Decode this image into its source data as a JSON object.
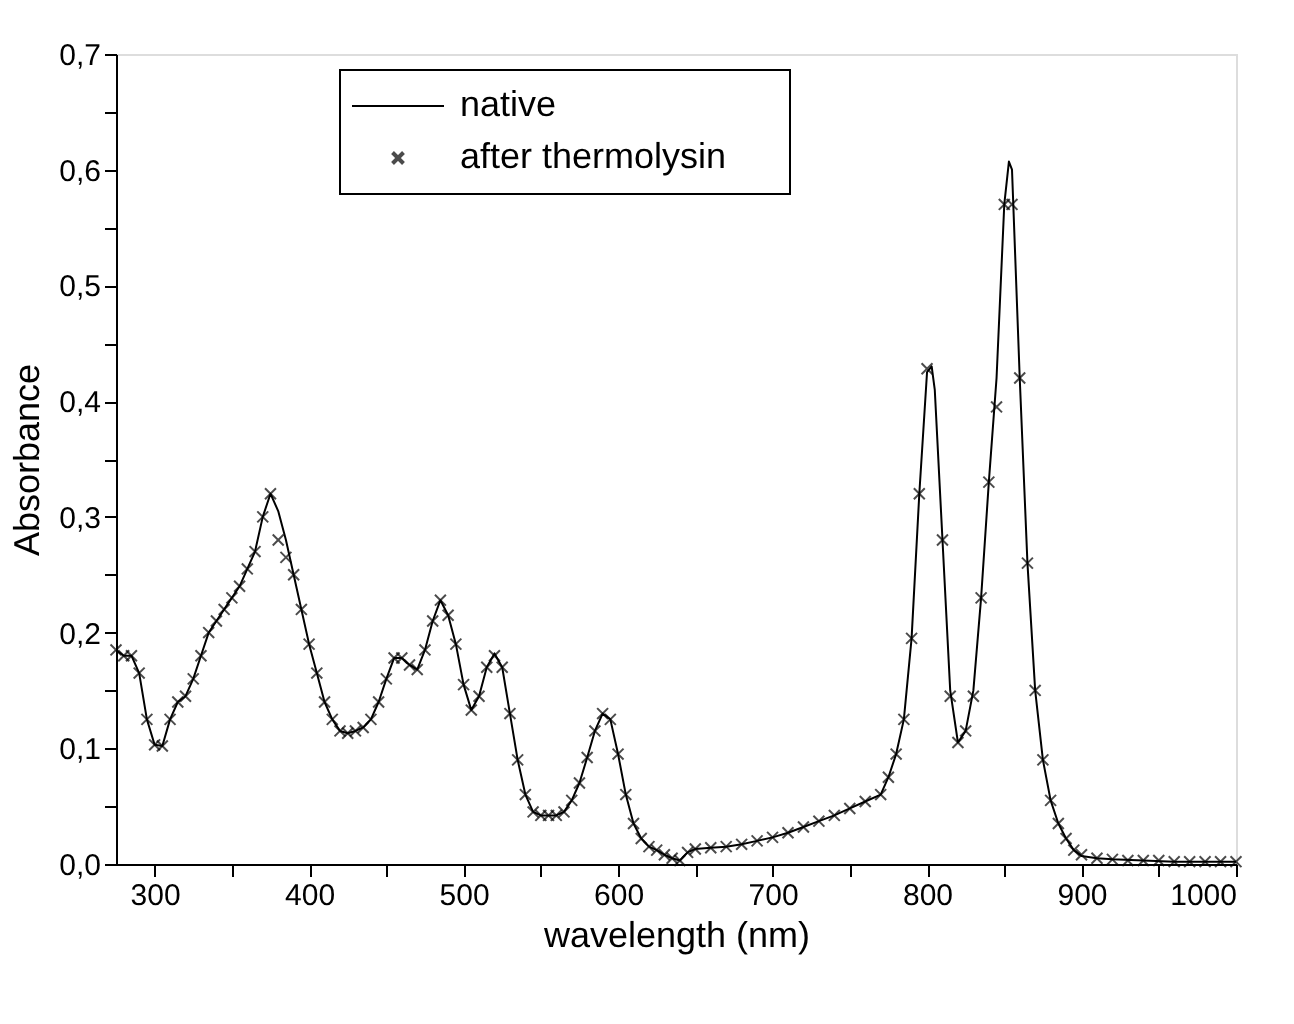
{
  "chart_data": {
    "type": "line",
    "xlabel": "wavelength (nm)",
    "ylabel": "Absorbance",
    "xlim": [
      275,
      1000
    ],
    "ylim": [
      0,
      0.7
    ],
    "xticks": [
      300,
      {
        "value": 350,
        "label": null
      },
      400,
      {
        "value": 450,
        "label": null
      },
      500,
      {
        "value": 550,
        "label": null
      },
      600,
      {
        "value": 650,
        "label": null
      },
      700,
      {
        "value": 750,
        "label": null
      },
      800,
      {
        "value": 850,
        "label": null
      },
      900,
      {
        "value": 950,
        "label": null
      },
      1000
    ],
    "yticks": [
      {
        "value": 0,
        "label": "0,0"
      },
      {
        "value": 0.05,
        "label": null
      },
      {
        "value": 0.1,
        "label": "0,1"
      },
      {
        "value": 0.15,
        "label": null
      },
      {
        "value": 0.2,
        "label": "0,2"
      },
      {
        "value": 0.25,
        "label": null
      },
      {
        "value": 0.3,
        "label": "0,3"
      },
      {
        "value": 0.35,
        "label": null
      },
      {
        "value": 0.4,
        "label": "0,4"
      },
      {
        "value": 0.45,
        "label": null
      },
      {
        "value": 0.5,
        "label": "0,5"
      },
      {
        "value": 0.55,
        "label": null
      },
      {
        "value": 0.6,
        "label": "0,6"
      },
      {
        "value": 0.65,
        "label": null
      },
      {
        "value": 0.7,
        "label": "0,7"
      }
    ],
    "grid": false,
    "legend": "top",
    "series": [
      {
        "name": "native",
        "color": "#000000",
        "line_style": "solid",
        "marker": "none",
        "x": [
          275,
          280,
          285,
          290,
          295,
          300,
          305,
          310,
          315,
          320,
          325,
          330,
          335,
          340,
          345,
          350,
          355,
          360,
          365,
          370,
          375,
          380,
          385,
          390,
          395,
          400,
          405,
          410,
          415,
          420,
          425,
          430,
          435,
          440,
          445,
          450,
          455,
          460,
          465,
          470,
          475,
          480,
          485,
          490,
          495,
          500,
          505,
          510,
          515,
          520,
          525,
          530,
          535,
          540,
          545,
          550,
          555,
          560,
          565,
          570,
          575,
          580,
          585,
          590,
          595,
          600,
          605,
          610,
          615,
          620,
          625,
          630,
          635,
          640,
          645,
          650,
          660,
          670,
          680,
          690,
          700,
          710,
          720,
          730,
          740,
          750,
          760,
          770,
          775,
          780,
          785,
          790,
          795,
          800,
          803,
          805,
          810,
          815,
          820,
          825,
          830,
          835,
          840,
          845,
          850,
          853,
          855,
          860,
          865,
          870,
          875,
          880,
          885,
          890,
          895,
          900,
          910,
          920,
          940,
          960,
          980,
          1000
        ],
        "values": [
          0.185,
          0.18,
          0.18,
          0.165,
          0.125,
          0.103,
          0.102,
          0.125,
          0.14,
          0.145,
          0.16,
          0.18,
          0.2,
          0.21,
          0.22,
          0.23,
          0.24,
          0.255,
          0.27,
          0.3,
          0.32,
          0.305,
          0.28,
          0.25,
          0.22,
          0.19,
          0.165,
          0.14,
          0.125,
          0.115,
          0.113,
          0.115,
          0.118,
          0.125,
          0.14,
          0.16,
          0.178,
          0.178,
          0.172,
          0.168,
          0.185,
          0.21,
          0.228,
          0.215,
          0.19,
          0.155,
          0.133,
          0.145,
          0.17,
          0.182,
          0.17,
          0.13,
          0.09,
          0.06,
          0.045,
          0.042,
          0.042,
          0.042,
          0.045,
          0.055,
          0.07,
          0.092,
          0.115,
          0.13,
          0.125,
          0.095,
          0.06,
          0.035,
          0.022,
          0.015,
          0.012,
          0.008,
          0.005,
          0.003,
          0.01,
          0.013,
          0.014,
          0.015,
          0.017,
          0.02,
          0.023,
          0.027,
          0.032,
          0.037,
          0.042,
          0.048,
          0.054,
          0.06,
          0.075,
          0.095,
          0.125,
          0.195,
          0.32,
          0.425,
          0.43,
          0.41,
          0.28,
          0.15,
          0.105,
          0.115,
          0.15,
          0.23,
          0.33,
          0.42,
          0.57,
          0.607,
          0.6,
          0.42,
          0.26,
          0.15,
          0.09,
          0.055,
          0.035,
          0.022,
          0.012,
          0.007,
          0.005,
          0.004,
          0.003,
          0.002,
          0.002,
          0.002
        ]
      },
      {
        "name": "after  thermolysin",
        "type": "scatter",
        "color": "#000000",
        "marker": "cross",
        "x": [
          275,
          280,
          285,
          290,
          295,
          300,
          305,
          310,
          315,
          320,
          325,
          330,
          335,
          340,
          345,
          350,
          355,
          360,
          365,
          370,
          375,
          380,
          385,
          390,
          395,
          400,
          405,
          410,
          415,
          420,
          425,
          430,
          435,
          440,
          445,
          450,
          455,
          460,
          465,
          470,
          475,
          480,
          485,
          490,
          495,
          500,
          505,
          510,
          515,
          520,
          525,
          530,
          535,
          540,
          545,
          550,
          555,
          560,
          565,
          570,
          575,
          580,
          585,
          590,
          595,
          600,
          605,
          610,
          615,
          620,
          625,
          630,
          635,
          640,
          645,
          650,
          660,
          670,
          680,
          690,
          700,
          710,
          720,
          730,
          740,
          750,
          760,
          770,
          775,
          780,
          785,
          790,
          795,
          800,
          810,
          815,
          820,
          825,
          830,
          835,
          840,
          845,
          850,
          855,
          860,
          865,
          870,
          875,
          880,
          885,
          890,
          895,
          900,
          910,
          920,
          930,
          940,
          950,
          960,
          970,
          980,
          990,
          1000
        ],
        "values": [
          0.185,
          0.18,
          0.18,
          0.165,
          0.125,
          0.103,
          0.102,
          0.125,
          0.14,
          0.145,
          0.16,
          0.18,
          0.2,
          0.21,
          0.22,
          0.23,
          0.24,
          0.255,
          0.27,
          0.3,
          0.32,
          0.28,
          0.265,
          0.25,
          0.22,
          0.19,
          0.165,
          0.14,
          0.125,
          0.115,
          0.113,
          0.115,
          0.118,
          0.125,
          0.14,
          0.16,
          0.178,
          0.178,
          0.172,
          0.168,
          0.185,
          0.21,
          0.228,
          0.215,
          0.19,
          0.155,
          0.133,
          0.145,
          0.17,
          0.18,
          0.17,
          0.13,
          0.09,
          0.06,
          0.045,
          0.042,
          0.042,
          0.042,
          0.045,
          0.055,
          0.07,
          0.092,
          0.115,
          0.13,
          0.125,
          0.095,
          0.06,
          0.035,
          0.022,
          0.015,
          0.012,
          0.008,
          0.005,
          0.003,
          0.01,
          0.013,
          0.014,
          0.015,
          0.017,
          0.02,
          0.023,
          0.027,
          0.032,
          0.037,
          0.042,
          0.048,
          0.054,
          0.06,
          0.075,
          0.095,
          0.125,
          0.195,
          0.32,
          0.428,
          0.28,
          0.145,
          0.105,
          0.115,
          0.145,
          0.23,
          0.33,
          0.395,
          0.57,
          0.57,
          0.42,
          0.26,
          0.15,
          0.09,
          0.055,
          0.035,
          0.022,
          0.012,
          0.008,
          0.005,
          0.004,
          0.003,
          0.003,
          0.003,
          0.002,
          0.002,
          0.002,
          0.002,
          0.002
        ]
      }
    ]
  }
}
